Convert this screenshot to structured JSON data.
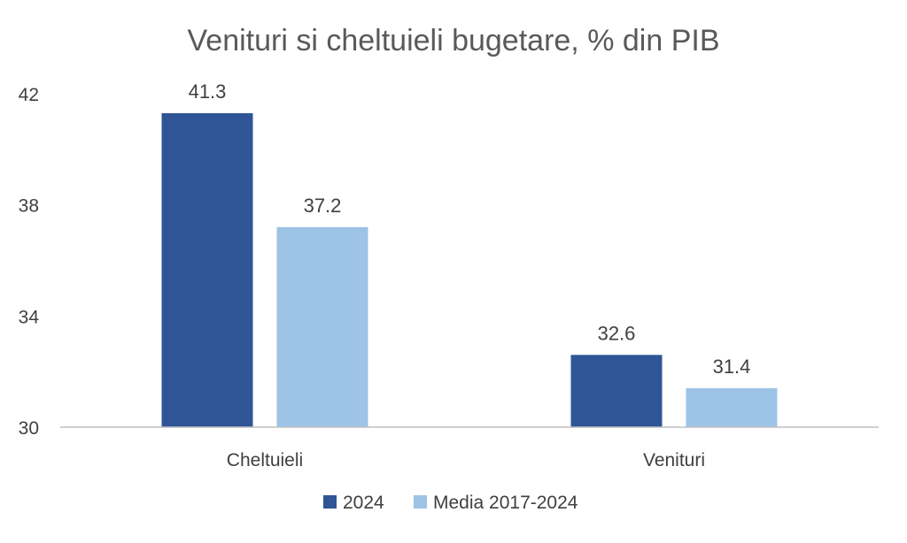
{
  "chart_data": {
    "type": "bar",
    "title": "Venituri si cheltuieli bugetare, % din PIB",
    "xlabel": "",
    "ylabel": "",
    "categories": [
      "Cheltuieli",
      "Venituri"
    ],
    "series": [
      {
        "name": "2024",
        "values": [
          41.3,
          32.6
        ],
        "color": "#2F5597"
      },
      {
        "name": "Media 2017-2024",
        "values": [
          37.2,
          31.4
        ],
        "color": "#9DC3E6"
      }
    ],
    "ylim": [
      30,
      42
    ],
    "yticks": [
      "30",
      "34",
      "38",
      "42"
    ],
    "grid": false,
    "legend_position": "bottom",
    "axis_color": "#BFBFBF"
  }
}
